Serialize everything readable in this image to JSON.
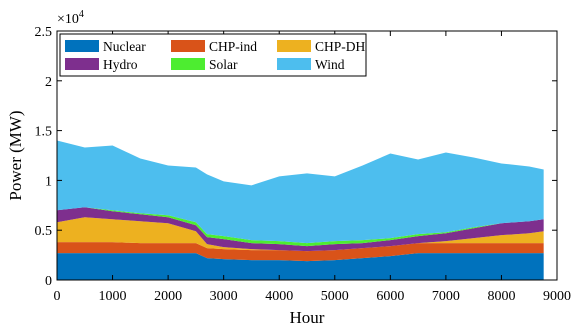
{
  "chart_data": {
    "type": "area",
    "stacked": true,
    "xlabel": "Hour",
    "ylabel": "Power (MW)",
    "y_multiplier_label": "×10",
    "y_multiplier_exponent": "4",
    "xlim": [
      0,
      9000
    ],
    "ylim": [
      0,
      2.5
    ],
    "y_units_scale": 10000,
    "x_ticks": [
      "0",
      "1000",
      "2000",
      "3000",
      "4000",
      "5000",
      "6000",
      "7000",
      "8000",
      "9000"
    ],
    "y_ticks": [
      "0",
      "0.5",
      "1",
      "1.5",
      "2",
      "2.5"
    ],
    "x": [
      0,
      500,
      1000,
      1500,
      2000,
      2500,
      2700,
      3000,
      3500,
      4000,
      4500,
      5000,
      5500,
      6000,
      6500,
      7000,
      7500,
      8000,
      8500,
      8760
    ],
    "series": [
      {
        "name": "Nuclear",
        "color": "#0072BD",
        "values": [
          0.27,
          0.27,
          0.27,
          0.27,
          0.27,
          0.27,
          0.22,
          0.21,
          0.2,
          0.2,
          0.19,
          0.2,
          0.22,
          0.24,
          0.27,
          0.27,
          0.27,
          0.27,
          0.27,
          0.27
        ]
      },
      {
        "name": "CHP-ind",
        "color": "#D95319",
        "values": [
          0.11,
          0.11,
          0.11,
          0.1,
          0.1,
          0.1,
          0.1,
          0.1,
          0.1,
          0.1,
          0.1,
          0.1,
          0.1,
          0.1,
          0.1,
          0.1,
          0.1,
          0.1,
          0.1,
          0.1
        ]
      },
      {
        "name": "CHP-DH",
        "color": "#EDB120",
        "values": [
          0.2,
          0.25,
          0.23,
          0.22,
          0.2,
          0.12,
          0.04,
          0.02,
          0.01,
          0.0,
          0.0,
          0.0,
          0.0,
          0.0,
          0.0,
          0.02,
          0.05,
          0.08,
          0.1,
          0.12
        ]
      },
      {
        "name": "Hydro",
        "color": "#7E2F8E",
        "values": [
          0.12,
          0.1,
          0.08,
          0.07,
          0.06,
          0.06,
          0.07,
          0.08,
          0.06,
          0.06,
          0.05,
          0.06,
          0.05,
          0.06,
          0.07,
          0.08,
          0.1,
          0.12,
          0.12,
          0.12
        ]
      },
      {
        "name": "Solar",
        "color": "#4DED30",
        "values": [
          0.0,
          0.0,
          0.01,
          0.01,
          0.02,
          0.03,
          0.03,
          0.03,
          0.03,
          0.03,
          0.03,
          0.03,
          0.03,
          0.02,
          0.02,
          0.01,
          0.01,
          0.0,
          0.0,
          0.0
        ]
      },
      {
        "name": "Wind",
        "color": "#4DBEEE",
        "values": [
          0.7,
          0.6,
          0.65,
          0.55,
          0.5,
          0.55,
          0.6,
          0.55,
          0.55,
          0.65,
          0.7,
          0.65,
          0.75,
          0.85,
          0.75,
          0.8,
          0.7,
          0.6,
          0.55,
          0.5
        ]
      }
    ],
    "legend": {
      "placement": "top-left",
      "columns": 3
    }
  }
}
